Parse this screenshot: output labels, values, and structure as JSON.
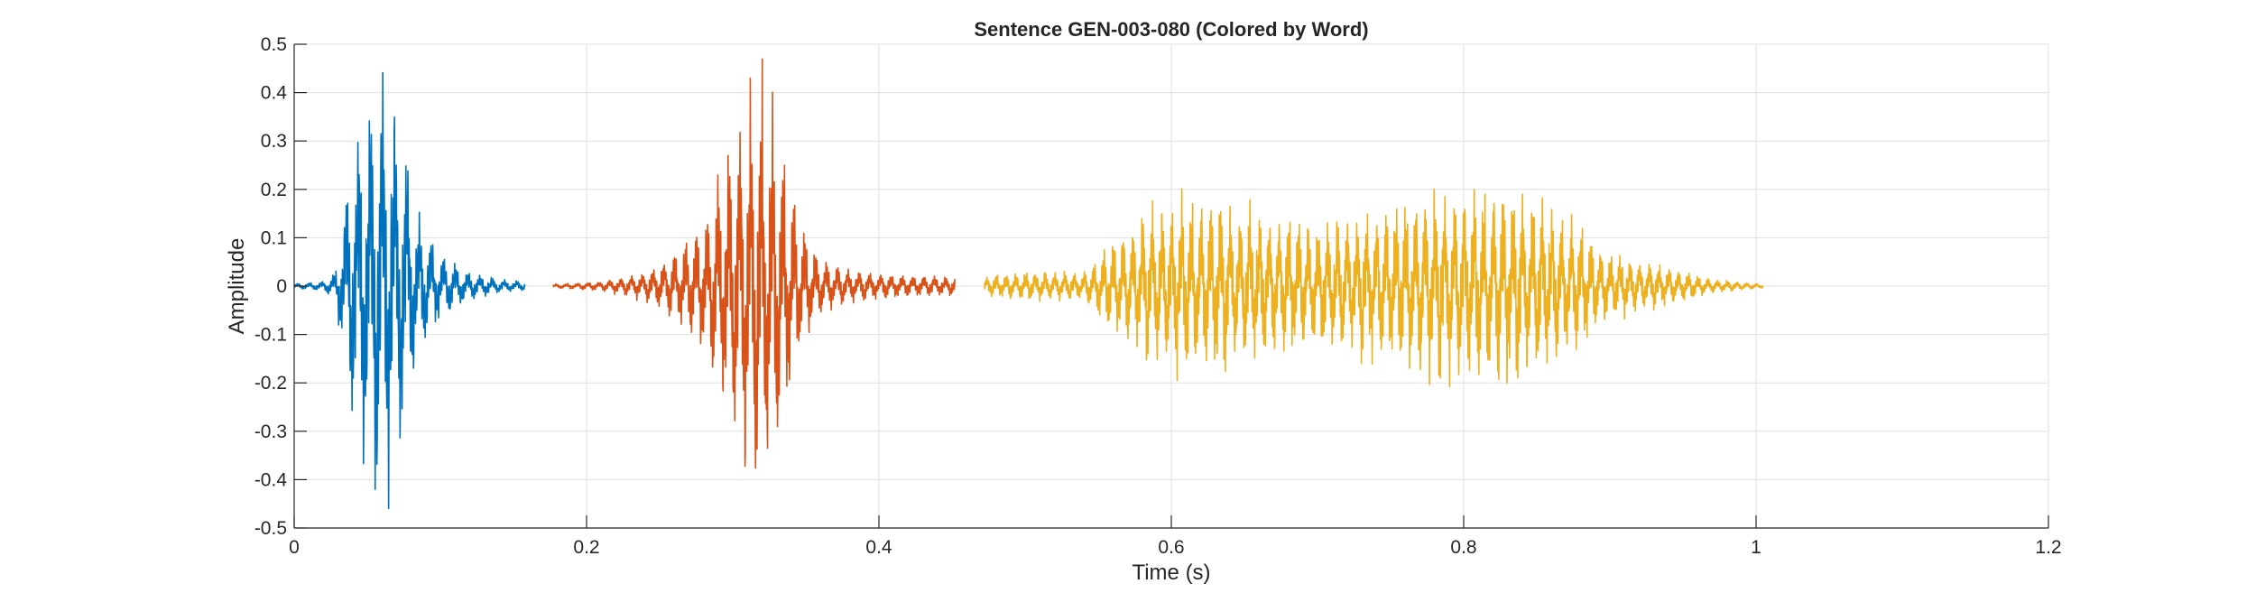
{
  "chart_data": {
    "type": "line",
    "title": "Sentence GEN-003-080 (Colored by Word)",
    "xlabel": "Time (s)",
    "ylabel": "Amplitude",
    "xlim": [
      0,
      1.2
    ],
    "ylim": [
      -0.5,
      0.5
    ],
    "xticks": [
      0,
      0.2,
      0.4,
      0.6,
      0.8,
      1,
      1.2
    ],
    "xtick_labels": [
      "0",
      "0.2",
      "0.4",
      "0.6",
      "0.8",
      "1",
      "1.2"
    ],
    "yticks": [
      0.5,
      0.4,
      0.3,
      0.2,
      0.1,
      0,
      -0.1,
      -0.2,
      -0.3,
      -0.4,
      -0.5
    ],
    "ytick_labels": [
      "0.5",
      "0.4",
      "0.3",
      "0.2",
      "0.1",
      "0",
      "-0.1",
      "-0.2",
      "-0.3",
      "-0.4",
      "-0.5"
    ],
    "grid": true,
    "series": [
      {
        "color": "#0072BD",
        "t_start": 0.0,
        "t_end": 0.158,
        "envelope": [
          [
            0.0,
            0.005
          ],
          [
            0.02,
            0.01
          ],
          [
            0.028,
            0.03
          ],
          [
            0.035,
            0.2
          ],
          [
            0.045,
            0.36
          ],
          [
            0.055,
            0.46
          ],
          [
            0.065,
            0.42
          ],
          [
            0.075,
            0.33
          ],
          [
            0.085,
            0.15
          ],
          [
            0.1,
            0.07
          ],
          [
            0.12,
            0.03
          ],
          [
            0.14,
            0.015
          ],
          [
            0.158,
            0.01
          ]
        ]
      },
      {
        "color": "#D95319",
        "t_start": 0.177,
        "t_end": 0.452,
        "envelope": [
          [
            0.177,
            0.004
          ],
          [
            0.21,
            0.01
          ],
          [
            0.24,
            0.03
          ],
          [
            0.26,
            0.07
          ],
          [
            0.28,
            0.14
          ],
          [
            0.295,
            0.27
          ],
          [
            0.31,
            0.39
          ],
          [
            0.32,
            0.44
          ],
          [
            0.33,
            0.35
          ],
          [
            0.345,
            0.15
          ],
          [
            0.36,
            0.06
          ],
          [
            0.38,
            0.035
          ],
          [
            0.41,
            0.025
          ],
          [
            0.452,
            0.02
          ]
        ]
      },
      {
        "color": "#EDB120",
        "t_start": 0.472,
        "t_end": 1.005,
        "envelope": [
          [
            0.472,
            0.02
          ],
          [
            0.5,
            0.03
          ],
          [
            0.54,
            0.03
          ],
          [
            0.555,
            0.08
          ],
          [
            0.58,
            0.15
          ],
          [
            0.61,
            0.19
          ],
          [
            0.65,
            0.17
          ],
          [
            0.7,
            0.13
          ],
          [
            0.74,
            0.16
          ],
          [
            0.78,
            0.2
          ],
          [
            0.82,
            0.21
          ],
          [
            0.85,
            0.2
          ],
          [
            0.875,
            0.14
          ],
          [
            0.9,
            0.07
          ],
          [
            0.94,
            0.04
          ],
          [
            0.97,
            0.015
          ],
          [
            1.005,
            0.004
          ]
        ]
      }
    ]
  }
}
